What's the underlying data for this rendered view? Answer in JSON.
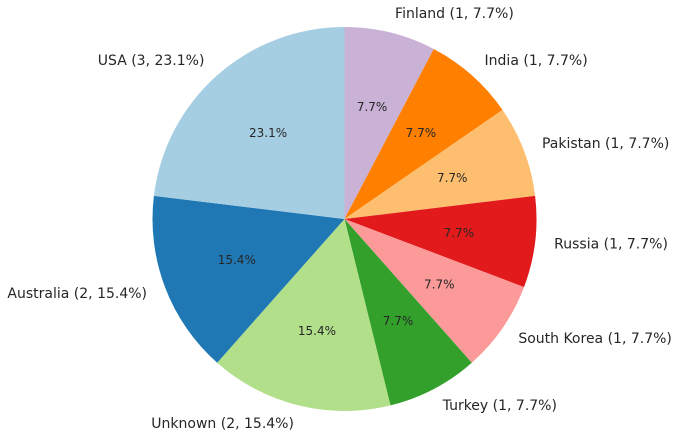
{
  "chart_data": {
    "type": "pie",
    "title": "",
    "start_angle_deg": 90,
    "direction": "clockwise",
    "slices": [
      {
        "label": "Finland",
        "outer_label": "Finland (1, 7.7%)",
        "value": 1,
        "percent_label": "7.7%",
        "color": "#cab2d6"
      },
      {
        "label": "India",
        "outer_label": "India (1, 7.7%)",
        "value": 1,
        "percent_label": "7.7%",
        "color": "#ff7f00"
      },
      {
        "label": "Pakistan",
        "outer_label": "Pakistan (1, 7.7%)",
        "value": 1,
        "percent_label": "7.7%",
        "color": "#fdbf6f"
      },
      {
        "label": "Russia",
        "outer_label": "Russia (1, 7.7%)",
        "value": 1,
        "percent_label": "7.7%",
        "color": "#e31a1c"
      },
      {
        "label": "South Korea",
        "outer_label": "South Korea (1, 7.7%)",
        "value": 1,
        "percent_label": "7.7%",
        "color": "#fb9a99"
      },
      {
        "label": "Turkey",
        "outer_label": "Turkey (1, 7.7%)",
        "value": 1,
        "percent_label": "7.7%",
        "color": "#33a02c"
      },
      {
        "label": "Unknown",
        "outer_label": "Unknown (2, 15.4%)",
        "value": 2,
        "percent_label": "15.4%",
        "color": "#b2df8a"
      },
      {
        "label": "Australia",
        "outer_label": "Australia (2, 15.4%)",
        "value": 2,
        "percent_label": "15.4%",
        "color": "#1f78b4"
      },
      {
        "label": "USA",
        "outer_label": "USA (3, 23.1%)",
        "value": 3,
        "percent_label": "23.1%",
        "color": "#a6cee3"
      }
    ]
  }
}
